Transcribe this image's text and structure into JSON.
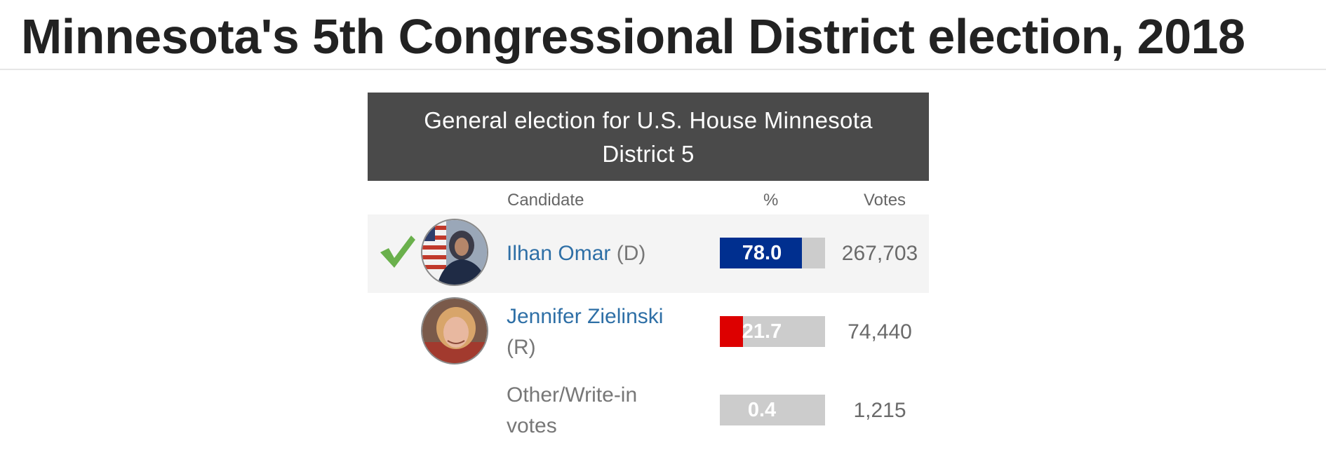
{
  "page": {
    "title": "Minnesota's 5th Congressional District election, 2018"
  },
  "results_table": {
    "header": "General election for U.S. House Minnesota District 5",
    "columns": {
      "candidate": "Candidate",
      "percent": "%",
      "votes": "Votes"
    },
    "rows": [
      {
        "name": "Ilhan Omar",
        "party": "(D)",
        "percent": "78.0",
        "percent_value": 78.0,
        "votes": "267,703",
        "winner": true,
        "bar_color": "#002f8f",
        "icon": "check-icon"
      },
      {
        "name": "Jennifer Zielinski",
        "party": "(R)",
        "percent": "21.7",
        "percent_value": 21.7,
        "votes": "74,440",
        "winner": false,
        "bar_color": "#dd0000"
      },
      {
        "name": "Other/Write-in votes",
        "party": "",
        "percent": "0.4",
        "percent_value": 0.4,
        "votes": "1,215",
        "winner": false,
        "bar_color": "#cccccc"
      }
    ],
    "check_color": "#6ab04c"
  }
}
